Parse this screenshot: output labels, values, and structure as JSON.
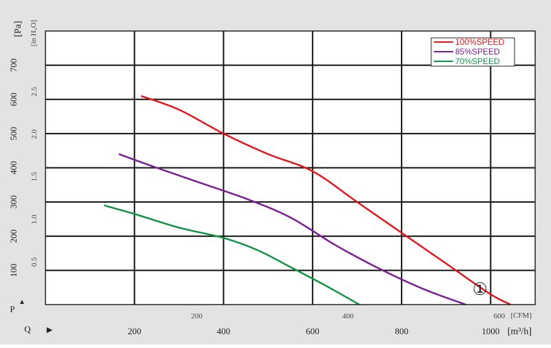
{
  "chart_data": {
    "type": "line",
    "title": "",
    "xlabel_symbol": "Q",
    "ylabel_symbol": "P",
    "x_units": {
      "primary": "[m³/h]",
      "secondary": "[CFM]"
    },
    "y_units": {
      "primary": "[Pa]",
      "secondary": "[in H₂O]"
    },
    "xlim_m3h": [
      0,
      1100
    ],
    "ylim_pa": [
      0,
      800
    ],
    "x_ticks_m3h": [
      200,
      400,
      600,
      800,
      1000
    ],
    "x_ticks_cfm": [
      200,
      400,
      600
    ],
    "y_ticks_pa": [
      100,
      200,
      300,
      400,
      500,
      600,
      700
    ],
    "y_ticks_inh2o": [
      0.5,
      1.0,
      1.5,
      2.0,
      2.5
    ],
    "y_tick_labels_inh2o": [
      "0.5",
      "1.0",
      "1.5",
      "2.0",
      "2.5"
    ],
    "grid": true,
    "legend_position": "top-right",
    "marker_label": "①",
    "series": [
      {
        "name": "100%SPEED",
        "color": "#e8141a",
        "x": [
          215,
          300,
          400,
          500,
          600,
          700,
          800,
          900,
          1000,
          1045
        ],
        "y": [
          610,
          570,
          500,
          440,
          390,
          300,
          210,
          120,
          30,
          0
        ]
      },
      {
        "name": "85%SPEED",
        "color": "#7b1e95",
        "x": [
          165,
          250,
          350,
          450,
          550,
          650,
          750,
          850,
          944
        ],
        "y": [
          440,
          400,
          355,
          310,
          255,
          175,
          105,
          45,
          0
        ]
      },
      {
        "name": "70%SPEED",
        "color": "#0f9444",
        "x": [
          132,
          200,
          300,
          400,
          475,
          550,
          630,
          705
        ],
        "y": [
          290,
          265,
          225,
          195,
          160,
          110,
          55,
          0
        ]
      }
    ]
  }
}
